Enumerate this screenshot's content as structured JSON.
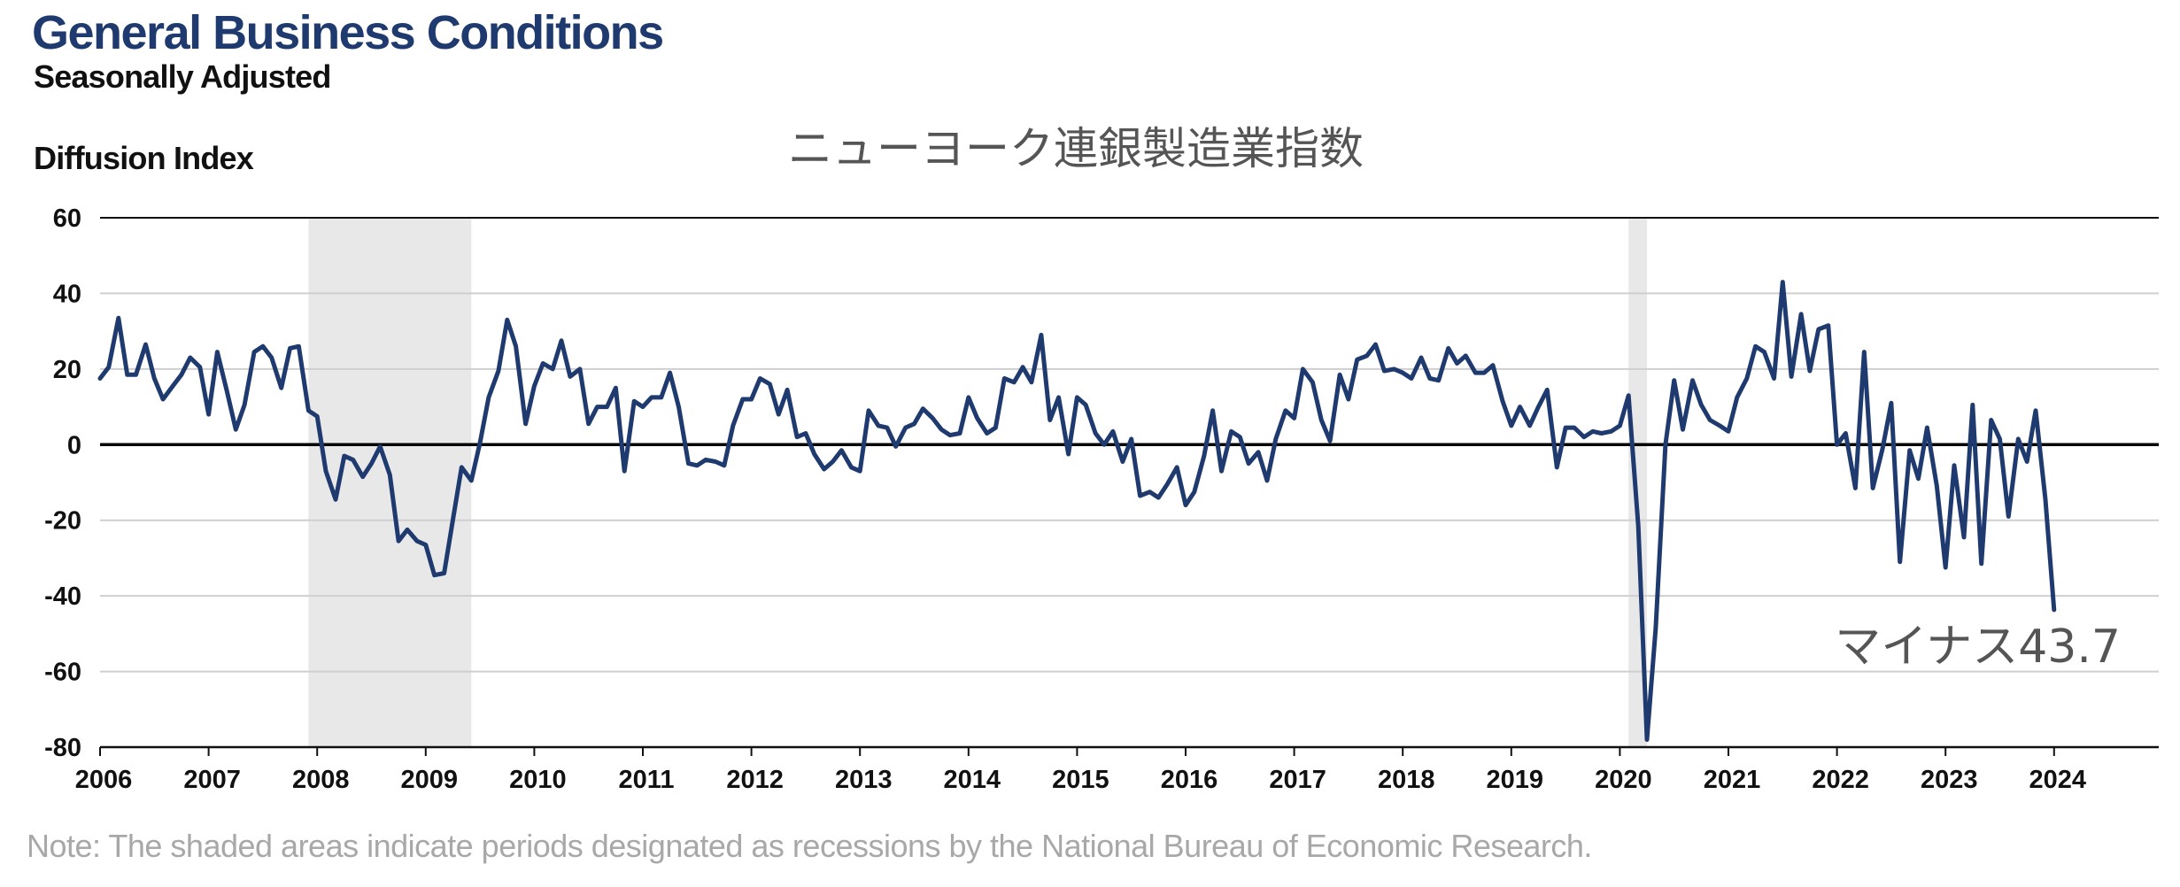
{
  "chart_data": {
    "type": "line",
    "title": "General Business Conditions",
    "subtitle": "Seasonally Adjusted",
    "ylabel": "Diffusion Index",
    "overlay_title": "ニューヨーク連銀製造業指数",
    "annotation": "マイナス43.7",
    "note": "Note: The shaded areas indicate periods designated as recessions by the National Bureau of Economic Research.",
    "ylim": [
      -80,
      60
    ],
    "yticks": [
      60,
      40,
      20,
      0,
      -20,
      -40,
      -60,
      -80
    ],
    "ytick_labels": [
      "60",
      "40",
      "20",
      "0",
      "-20",
      "-40",
      "-60",
      "-80"
    ],
    "xlim": [
      2006,
      2025
    ],
    "xticks": [
      2006,
      2007,
      2008,
      2009,
      2010,
      2011,
      2012,
      2013,
      2014,
      2015,
      2016,
      2017,
      2018,
      2019,
      2020,
      2021,
      2022,
      2023,
      2024
    ],
    "xtick_labels": [
      "2006",
      "2007",
      "2008",
      "2009",
      "2010",
      "2011",
      "2012",
      "2013",
      "2014",
      "2015",
      "2016",
      "2017",
      "2018",
      "2019",
      "2020",
      "2021",
      "2022",
      "2023",
      "2024"
    ],
    "recessions": [
      [
        2007.92,
        2009.42
      ],
      [
        2020.08,
        2020.25
      ]
    ],
    "grid": true,
    "colors": {
      "line": "#1f3a6e",
      "shade": "#e8e8e8",
      "grid": "#cfcfcf",
      "zero": "#000000"
    },
    "series": [
      {
        "values": [
          [
            2006.0,
            17.5
          ],
          [
            2006.08,
            20.5
          ],
          [
            2006.17,
            33.5
          ],
          [
            2006.25,
            18.5
          ],
          [
            2006.33,
            18.5
          ],
          [
            2006.42,
            26.5
          ],
          [
            2006.5,
            17.5
          ],
          [
            2006.58,
            12.0
          ],
          [
            2006.67,
            15.5
          ],
          [
            2006.75,
            18.5
          ],
          [
            2006.83,
            23.0
          ],
          [
            2006.92,
            20.5
          ],
          [
            2007.0,
            8.0
          ],
          [
            2007.08,
            24.5
          ],
          [
            2007.17,
            14.0
          ],
          [
            2007.25,
            4.0
          ],
          [
            2007.33,
            10.5
          ],
          [
            2007.42,
            24.5
          ],
          [
            2007.5,
            26.0
          ],
          [
            2007.58,
            23.0
          ],
          [
            2007.67,
            15.0
          ],
          [
            2007.75,
            25.5
          ],
          [
            2007.83,
            26.0
          ],
          [
            2007.92,
            9.0
          ],
          [
            2008.0,
            7.5
          ],
          [
            2008.08,
            -7.0
          ],
          [
            2008.17,
            -14.5
          ],
          [
            2008.25,
            -3.0
          ],
          [
            2008.33,
            -4.0
          ],
          [
            2008.42,
            -8.5
          ],
          [
            2008.5,
            -5.0
          ],
          [
            2008.58,
            -0.5
          ],
          [
            2008.67,
            -8.0
          ],
          [
            2008.75,
            -25.5
          ],
          [
            2008.83,
            -22.5
          ],
          [
            2008.92,
            -25.5
          ],
          [
            2009.0,
            -26.5
          ],
          [
            2009.08,
            -34.5
          ],
          [
            2009.17,
            -34.0
          ],
          [
            2009.25,
            -20.0
          ],
          [
            2009.33,
            -6.0
          ],
          [
            2009.42,
            -9.5
          ],
          [
            2009.5,
            0.5
          ],
          [
            2009.58,
            12.5
          ],
          [
            2009.67,
            19.5
          ],
          [
            2009.75,
            33.0
          ],
          [
            2009.83,
            26.0
          ],
          [
            2009.92,
            5.5
          ],
          [
            2010.0,
            15.5
          ],
          [
            2010.08,
            21.5
          ],
          [
            2010.17,
            20.0
          ],
          [
            2010.25,
            27.5
          ],
          [
            2010.33,
            18.0
          ],
          [
            2010.42,
            20.0
          ],
          [
            2010.5,
            5.5
          ],
          [
            2010.58,
            10.0
          ],
          [
            2010.67,
            10.0
          ],
          [
            2010.75,
            15.0
          ],
          [
            2010.83,
            -7.0
          ],
          [
            2010.92,
            11.5
          ],
          [
            2011.0,
            10.0
          ],
          [
            2011.08,
            12.5
          ],
          [
            2011.17,
            12.5
          ],
          [
            2011.25,
            19.0
          ],
          [
            2011.33,
            10.0
          ],
          [
            2011.42,
            -5.0
          ],
          [
            2011.5,
            -5.5
          ],
          [
            2011.58,
            -4.0
          ],
          [
            2011.67,
            -4.5
          ],
          [
            2011.75,
            -5.5
          ],
          [
            2011.83,
            5.0
          ],
          [
            2011.92,
            12.0
          ],
          [
            2012.0,
            12.0
          ],
          [
            2012.08,
            17.5
          ],
          [
            2012.17,
            16.0
          ],
          [
            2012.25,
            8.0
          ],
          [
            2012.33,
            14.5
          ],
          [
            2012.42,
            2.0
          ],
          [
            2012.5,
            3.0
          ],
          [
            2012.58,
            -2.5
          ],
          [
            2012.67,
            -6.5
          ],
          [
            2012.75,
            -4.5
          ],
          [
            2012.83,
            -1.5
          ],
          [
            2012.92,
            -6.0
          ],
          [
            2013.0,
            -7.0
          ],
          [
            2013.08,
            9.0
          ],
          [
            2013.17,
            5.0
          ],
          [
            2013.25,
            4.5
          ],
          [
            2013.33,
            -0.5
          ],
          [
            2013.42,
            4.5
          ],
          [
            2013.5,
            5.5
          ],
          [
            2013.58,
            9.5
          ],
          [
            2013.67,
            7.0
          ],
          [
            2013.75,
            4.0
          ],
          [
            2013.83,
            2.5
          ],
          [
            2013.92,
            3.0
          ],
          [
            2014.0,
            12.5
          ],
          [
            2014.08,
            7.0
          ],
          [
            2014.17,
            3.0
          ],
          [
            2014.25,
            4.5
          ],
          [
            2014.33,
            17.5
          ],
          [
            2014.42,
            16.5
          ],
          [
            2014.5,
            20.5
          ],
          [
            2014.58,
            16.5
          ],
          [
            2014.67,
            29.0
          ],
          [
            2014.75,
            6.5
          ],
          [
            2014.83,
            12.5
          ],
          [
            2014.92,
            -2.5
          ],
          [
            2015.0,
            12.5
          ],
          [
            2015.08,
            10.5
          ],
          [
            2015.17,
            3.0
          ],
          [
            2015.25,
            0.0
          ],
          [
            2015.33,
            3.5
          ],
          [
            2015.42,
            -4.5
          ],
          [
            2015.5,
            1.5
          ],
          [
            2015.58,
            -13.5
          ],
          [
            2015.67,
            -12.5
          ],
          [
            2015.75,
            -14.0
          ],
          [
            2015.83,
            -10.5
          ],
          [
            2015.92,
            -6.0
          ],
          [
            2016.0,
            -16.0
          ],
          [
            2016.08,
            -12.5
          ],
          [
            2016.17,
            -3.0
          ],
          [
            2016.25,
            9.0
          ],
          [
            2016.33,
            -7.0
          ],
          [
            2016.42,
            3.5
          ],
          [
            2016.5,
            2.0
          ],
          [
            2016.58,
            -5.0
          ],
          [
            2016.67,
            -2.0
          ],
          [
            2016.75,
            -9.5
          ],
          [
            2016.83,
            1.5
          ],
          [
            2016.92,
            9.0
          ],
          [
            2017.0,
            7.0
          ],
          [
            2017.08,
            20.0
          ],
          [
            2017.17,
            16.5
          ],
          [
            2017.25,
            6.5
          ],
          [
            2017.33,
            1.0
          ],
          [
            2017.42,
            18.5
          ],
          [
            2017.5,
            12.0
          ],
          [
            2017.58,
            22.5
          ],
          [
            2017.67,
            23.5
          ],
          [
            2017.75,
            26.5
          ],
          [
            2017.83,
            19.5
          ],
          [
            2017.92,
            20.0
          ],
          [
            2018.0,
            19.0
          ],
          [
            2018.08,
            17.5
          ],
          [
            2018.17,
            23.0
          ],
          [
            2018.25,
            17.5
          ],
          [
            2018.33,
            17.0
          ],
          [
            2018.42,
            25.5
          ],
          [
            2018.5,
            21.5
          ],
          [
            2018.58,
            23.5
          ],
          [
            2018.67,
            19.0
          ],
          [
            2018.75,
            19.0
          ],
          [
            2018.83,
            21.0
          ],
          [
            2018.92,
            11.5
          ],
          [
            2019.0,
            5.0
          ],
          [
            2019.08,
            10.0
          ],
          [
            2019.17,
            5.0
          ],
          [
            2019.25,
            10.0
          ],
          [
            2019.33,
            14.5
          ],
          [
            2019.42,
            -6.0
          ],
          [
            2019.5,
            4.5
          ],
          [
            2019.58,
            4.5
          ],
          [
            2019.67,
            2.0
          ],
          [
            2019.75,
            3.5
          ],
          [
            2019.83,
            3.0
          ],
          [
            2019.92,
            3.5
          ],
          [
            2020.0,
            5.0
          ],
          [
            2020.08,
            13.0
          ],
          [
            2020.17,
            -21.5
          ],
          [
            2020.25,
            -78.0
          ],
          [
            2020.33,
            -48.5
          ],
          [
            2020.42,
            0.0
          ],
          [
            2020.5,
            17.0
          ],
          [
            2020.58,
            4.0
          ],
          [
            2020.67,
            17.0
          ],
          [
            2020.75,
            10.5
          ],
          [
            2020.83,
            6.5
          ],
          [
            2020.92,
            5.0
          ],
          [
            2021.0,
            3.5
          ],
          [
            2021.08,
            12.5
          ],
          [
            2021.17,
            17.5
          ],
          [
            2021.25,
            26.0
          ],
          [
            2021.33,
            24.5
          ],
          [
            2021.42,
            17.5
          ],
          [
            2021.5,
            43.0
          ],
          [
            2021.58,
            18.0
          ],
          [
            2021.67,
            34.5
          ],
          [
            2021.75,
            19.5
          ],
          [
            2021.83,
            30.5
          ],
          [
            2021.92,
            31.5
          ],
          [
            2022.0,
            0.0
          ],
          [
            2022.08,
            3.0
          ],
          [
            2022.17,
            -11.5
          ],
          [
            2022.25,
            24.5
          ],
          [
            2022.33,
            -11.5
          ],
          [
            2022.42,
            -1.0
          ],
          [
            2022.5,
            11.0
          ],
          [
            2022.58,
            -31.0
          ],
          [
            2022.67,
            -1.5
          ],
          [
            2022.75,
            -9.0
          ],
          [
            2022.83,
            4.5
          ],
          [
            2022.92,
            -11.0
          ],
          [
            2023.0,
            -32.5
          ],
          [
            2023.08,
            -5.5
          ],
          [
            2023.17,
            -24.5
          ],
          [
            2023.25,
            10.5
          ],
          [
            2023.33,
            -31.5
          ],
          [
            2023.42,
            6.5
          ],
          [
            2023.5,
            1.5
          ],
          [
            2023.58,
            -19.0
          ],
          [
            2023.67,
            1.5
          ],
          [
            2023.75,
            -4.5
          ],
          [
            2023.83,
            9.0
          ],
          [
            2023.92,
            -14.5
          ],
          [
            2024.0,
            -43.7
          ]
        ]
      }
    ]
  }
}
